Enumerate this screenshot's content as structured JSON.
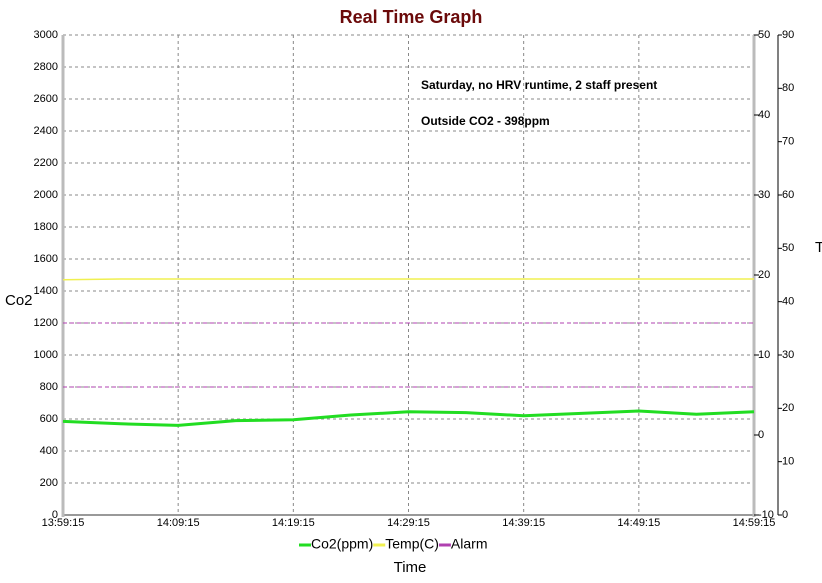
{
  "chart_data": {
    "type": "line",
    "title": "Real Time Graph",
    "xlabel": "Time",
    "ylabel": "Co2",
    "y2label": "T",
    "annotations": [
      "Saturday, no HRV runtime, 2 staff present",
      "Outside CO2 - 398ppm"
    ],
    "x": [
      "13:59:15",
      "14:04:15",
      "14:09:15",
      "14:14:15",
      "14:19:15",
      "14:24:15",
      "14:29:15",
      "14:34:15",
      "14:39:15",
      "14:44:15",
      "14:49:15",
      "14:54:15",
      "14:59:15"
    ],
    "series": [
      {
        "name": "Co2(ppm)",
        "color": "#22dd22",
        "values": [
          585,
          570,
          560,
          590,
          595,
          625,
          645,
          640,
          620,
          635,
          650,
          630,
          645
        ]
      },
      {
        "name": "Temp(C)",
        "color": "#f0f050",
        "axis": "y2",
        "values": [
          19.4,
          19.5,
          19.5,
          19.5,
          19.5,
          19.5,
          19.5,
          19.5,
          19.5,
          19.5,
          19.5,
          19.5,
          19.5
        ]
      }
    ],
    "alarm": {
      "name": "Alarm",
      "color": "#b040b0",
      "levels": [
        1200,
        800
      ]
    },
    "xlim": [
      "13:59:15",
      "14:59:15"
    ],
    "xticks": [
      "13:59:15",
      "14:09:15",
      "14:19:15",
      "14:29:15",
      "14:39:15",
      "14:49:15",
      "14:59:15"
    ],
    "ylim": [
      0,
      3000
    ],
    "yticks": [
      0,
      200,
      400,
      600,
      800,
      1000,
      1200,
      1400,
      1600,
      1800,
      2000,
      2200,
      2400,
      2600,
      2800,
      3000
    ],
    "y2lim": [
      -10,
      50
    ],
    "y2ticks": [
      -10,
      0,
      10,
      20,
      30,
      40,
      50
    ],
    "y3lim": [
      0,
      90
    ],
    "y3ticks": [
      0,
      10,
      20,
      30,
      40,
      50,
      60,
      70,
      80,
      90
    ],
    "grid": true
  }
}
